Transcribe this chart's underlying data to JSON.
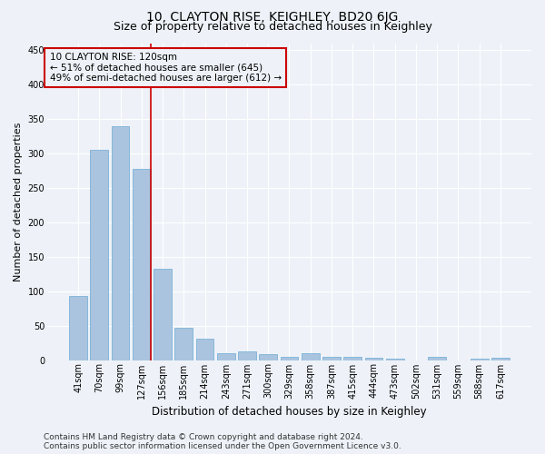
{
  "title": "10, CLAYTON RISE, KEIGHLEY, BD20 6JG",
  "subtitle": "Size of property relative to detached houses in Keighley",
  "xlabel": "Distribution of detached houses by size in Keighley",
  "ylabel": "Number of detached properties",
  "categories": [
    "41sqm",
    "70sqm",
    "99sqm",
    "127sqm",
    "156sqm",
    "185sqm",
    "214sqm",
    "243sqm",
    "271sqm",
    "300sqm",
    "329sqm",
    "358sqm",
    "387sqm",
    "415sqm",
    "444sqm",
    "473sqm",
    "502sqm",
    "531sqm",
    "559sqm",
    "588sqm",
    "617sqm"
  ],
  "values": [
    93,
    305,
    340,
    278,
    133,
    47,
    31,
    10,
    13,
    8,
    5,
    10,
    5,
    4,
    3,
    2,
    0,
    5,
    0,
    2,
    3
  ],
  "bar_color": "#aac4df",
  "bar_edge_color": "#6aaad4",
  "annotation_box_text": "10 CLAYTON RISE: 120sqm\n← 51% of detached houses are smaller (645)\n49% of semi-detached houses are larger (612) →",
  "annotation_box_color": "#cc0000",
  "vline_color": "#cc0000",
  "vline_x": 3.425,
  "ylim": [
    0,
    460
  ],
  "yticks": [
    0,
    50,
    100,
    150,
    200,
    250,
    300,
    350,
    400,
    450
  ],
  "footer_text": "Contains HM Land Registry data © Crown copyright and database right 2024.\nContains public sector information licensed under the Open Government Licence v3.0.",
  "background_color": "#eef2f8",
  "grid_color": "#ffffff",
  "title_fontsize": 10,
  "subtitle_fontsize": 9,
  "ylabel_fontsize": 8,
  "xlabel_fontsize": 8.5,
  "tick_fontsize": 7,
  "annotation_fontsize": 7.5,
  "footer_fontsize": 6.5
}
